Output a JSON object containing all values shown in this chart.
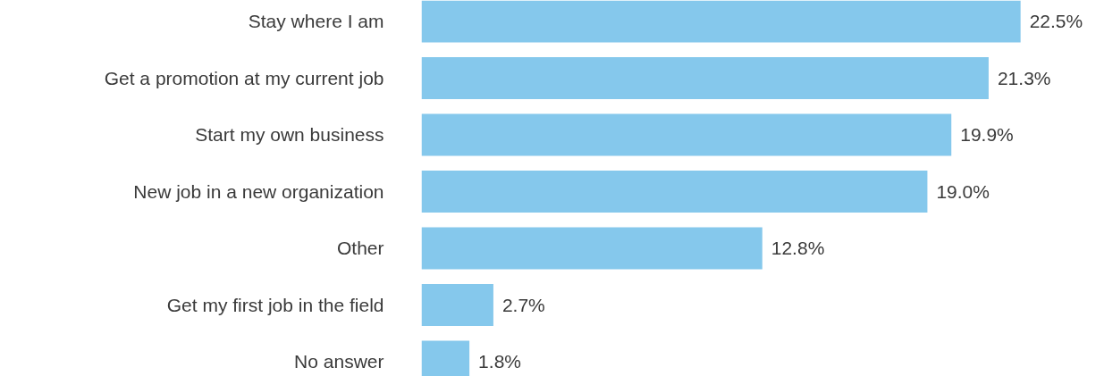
{
  "chart_data": {
    "type": "bar",
    "orientation": "horizontal",
    "categories": [
      "Stay where I am",
      "Get a promotion at my current job",
      "Start my own business",
      "New job in a new organization",
      "Other",
      "Get my first job in the field",
      "No answer"
    ],
    "values": [
      22.5,
      21.3,
      19.9,
      19.0,
      12.8,
      2.7,
      1.8
    ],
    "value_labels": [
      "22.5%",
      "21.3%",
      "19.9%",
      "19.0%",
      "12.8%",
      "2.7%",
      "1.8%"
    ],
    "color": "#85c8ec",
    "grid": false
  }
}
